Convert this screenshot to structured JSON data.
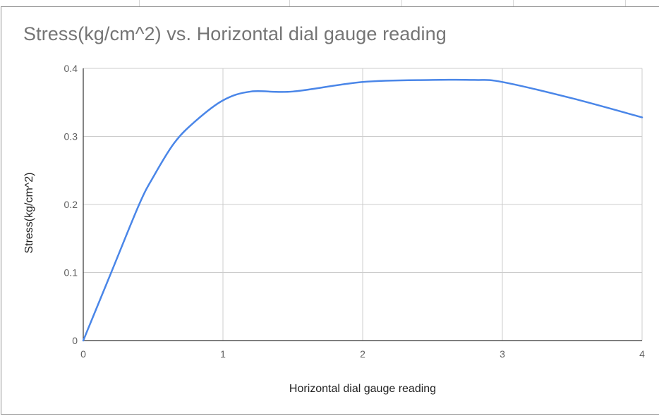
{
  "chart_data": {
    "type": "line",
    "title": "Stress(kg/cm^2) vs. Horizontal dial gauge reading",
    "xlabel": "Horizontal dial gauge reading",
    "ylabel": "Stress(kg/cm^2)",
    "xlim": [
      0,
      4
    ],
    "ylim": [
      0,
      0.4
    ],
    "x_ticks": [
      "0",
      "1",
      "2",
      "3",
      "4"
    ],
    "y_ticks": [
      "0",
      "0.1",
      "0.2",
      "0.3",
      "0.4"
    ],
    "grid": true,
    "legend": "none",
    "series": [
      {
        "color": "#4a86e8",
        "points": [
          [
            0,
            0
          ],
          [
            0.2,
            0.1
          ],
          [
            0.4,
            0.2
          ],
          [
            0.5,
            0.24
          ],
          [
            0.65,
            0.29
          ],
          [
            0.8,
            0.322
          ],
          [
            1.0,
            0.353
          ],
          [
            1.2,
            0.366
          ],
          [
            1.5,
            0.366
          ],
          [
            2.0,
            0.38
          ],
          [
            2.5,
            0.383
          ],
          [
            2.8,
            0.383
          ],
          [
            3.0,
            0.38
          ],
          [
            3.5,
            0.356
          ],
          [
            4.0,
            0.328
          ]
        ]
      }
    ]
  }
}
